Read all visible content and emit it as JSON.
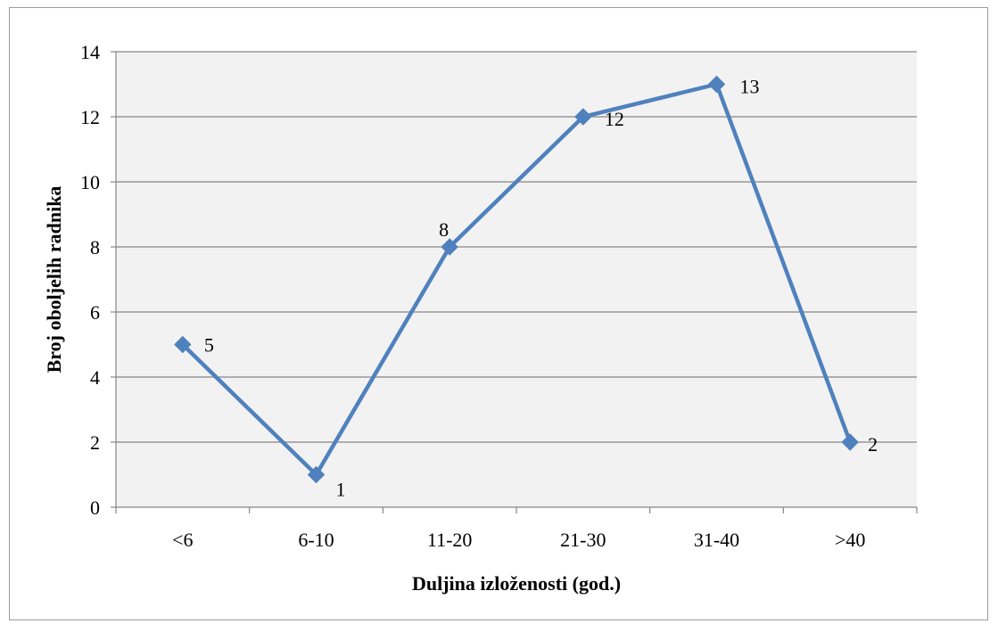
{
  "chart_data": {
    "type": "line",
    "categories": [
      "<6",
      "6-10",
      "11-20",
      "21-30",
      "31-40",
      ">40"
    ],
    "series": [
      {
        "values": [
          5,
          1,
          8,
          12,
          13,
          2
        ]
      }
    ],
    "data_labels": [
      "5",
      "1",
      "8",
      "12",
      "13",
      "2"
    ],
    "xlabel": "Duljina izloženosti (god.)",
    "ylabel": "Broj oboljelih radnika",
    "ylim": [
      0,
      14
    ],
    "yticks": [
      0,
      2,
      4,
      6,
      8,
      10,
      12,
      14
    ],
    "grid": true,
    "legend": "none",
    "colors": {
      "line": "#4F81BD",
      "plot_bg": "#F2F2F2",
      "grid": "#868686",
      "axis": "#868686"
    }
  }
}
